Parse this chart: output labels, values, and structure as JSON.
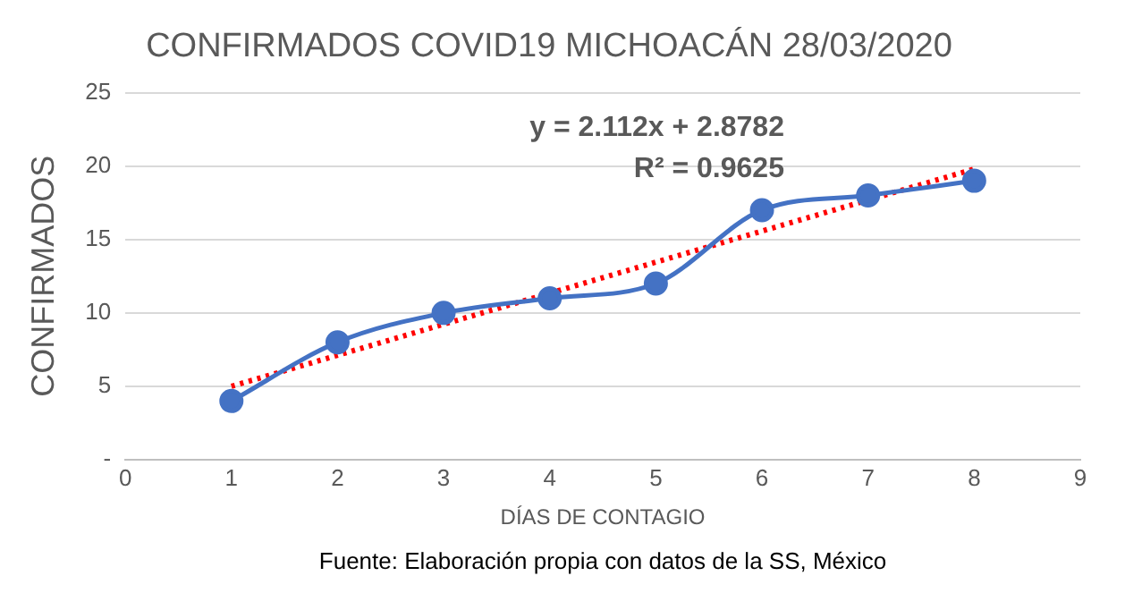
{
  "chart_data": {
    "type": "line",
    "title": "CONFIRMADOS COVID19 MICHOACÁN 28/03/2020",
    "xlabel": "DÍAS DE CONTAGIO",
    "ylabel": "CONFIRMADOS",
    "x": [
      1,
      2,
      3,
      4,
      5,
      6,
      7,
      8
    ],
    "series": [
      {
        "color": "#4472c4",
        "values": [
          4,
          8,
          10,
          11,
          12,
          17,
          18,
          19
        ],
        "marker": "circle",
        "line_style": "solid"
      },
      {
        "type": "line",
        "color": "#ff0000",
        "x": [
          1,
          8
        ],
        "values": [
          5.0,
          19.8
        ],
        "marker": "none",
        "line_style": "dotted"
      }
    ],
    "xlim": [
      0,
      9
    ],
    "xticks": [
      0,
      1,
      2,
      3,
      4,
      5,
      6,
      7,
      8,
      9
    ],
    "ylim": [
      0,
      25
    ],
    "yticks": [
      {
        "value": 0,
        "label": "-"
      },
      5,
      10,
      15,
      20,
      25
    ],
    "grid": "y",
    "legend": false,
    "annotations": [
      "y = 2.112x + 2.8782",
      "R² = 0.9625",
      "Fuente: Elaboración propia con datos de la SS, México"
    ]
  }
}
